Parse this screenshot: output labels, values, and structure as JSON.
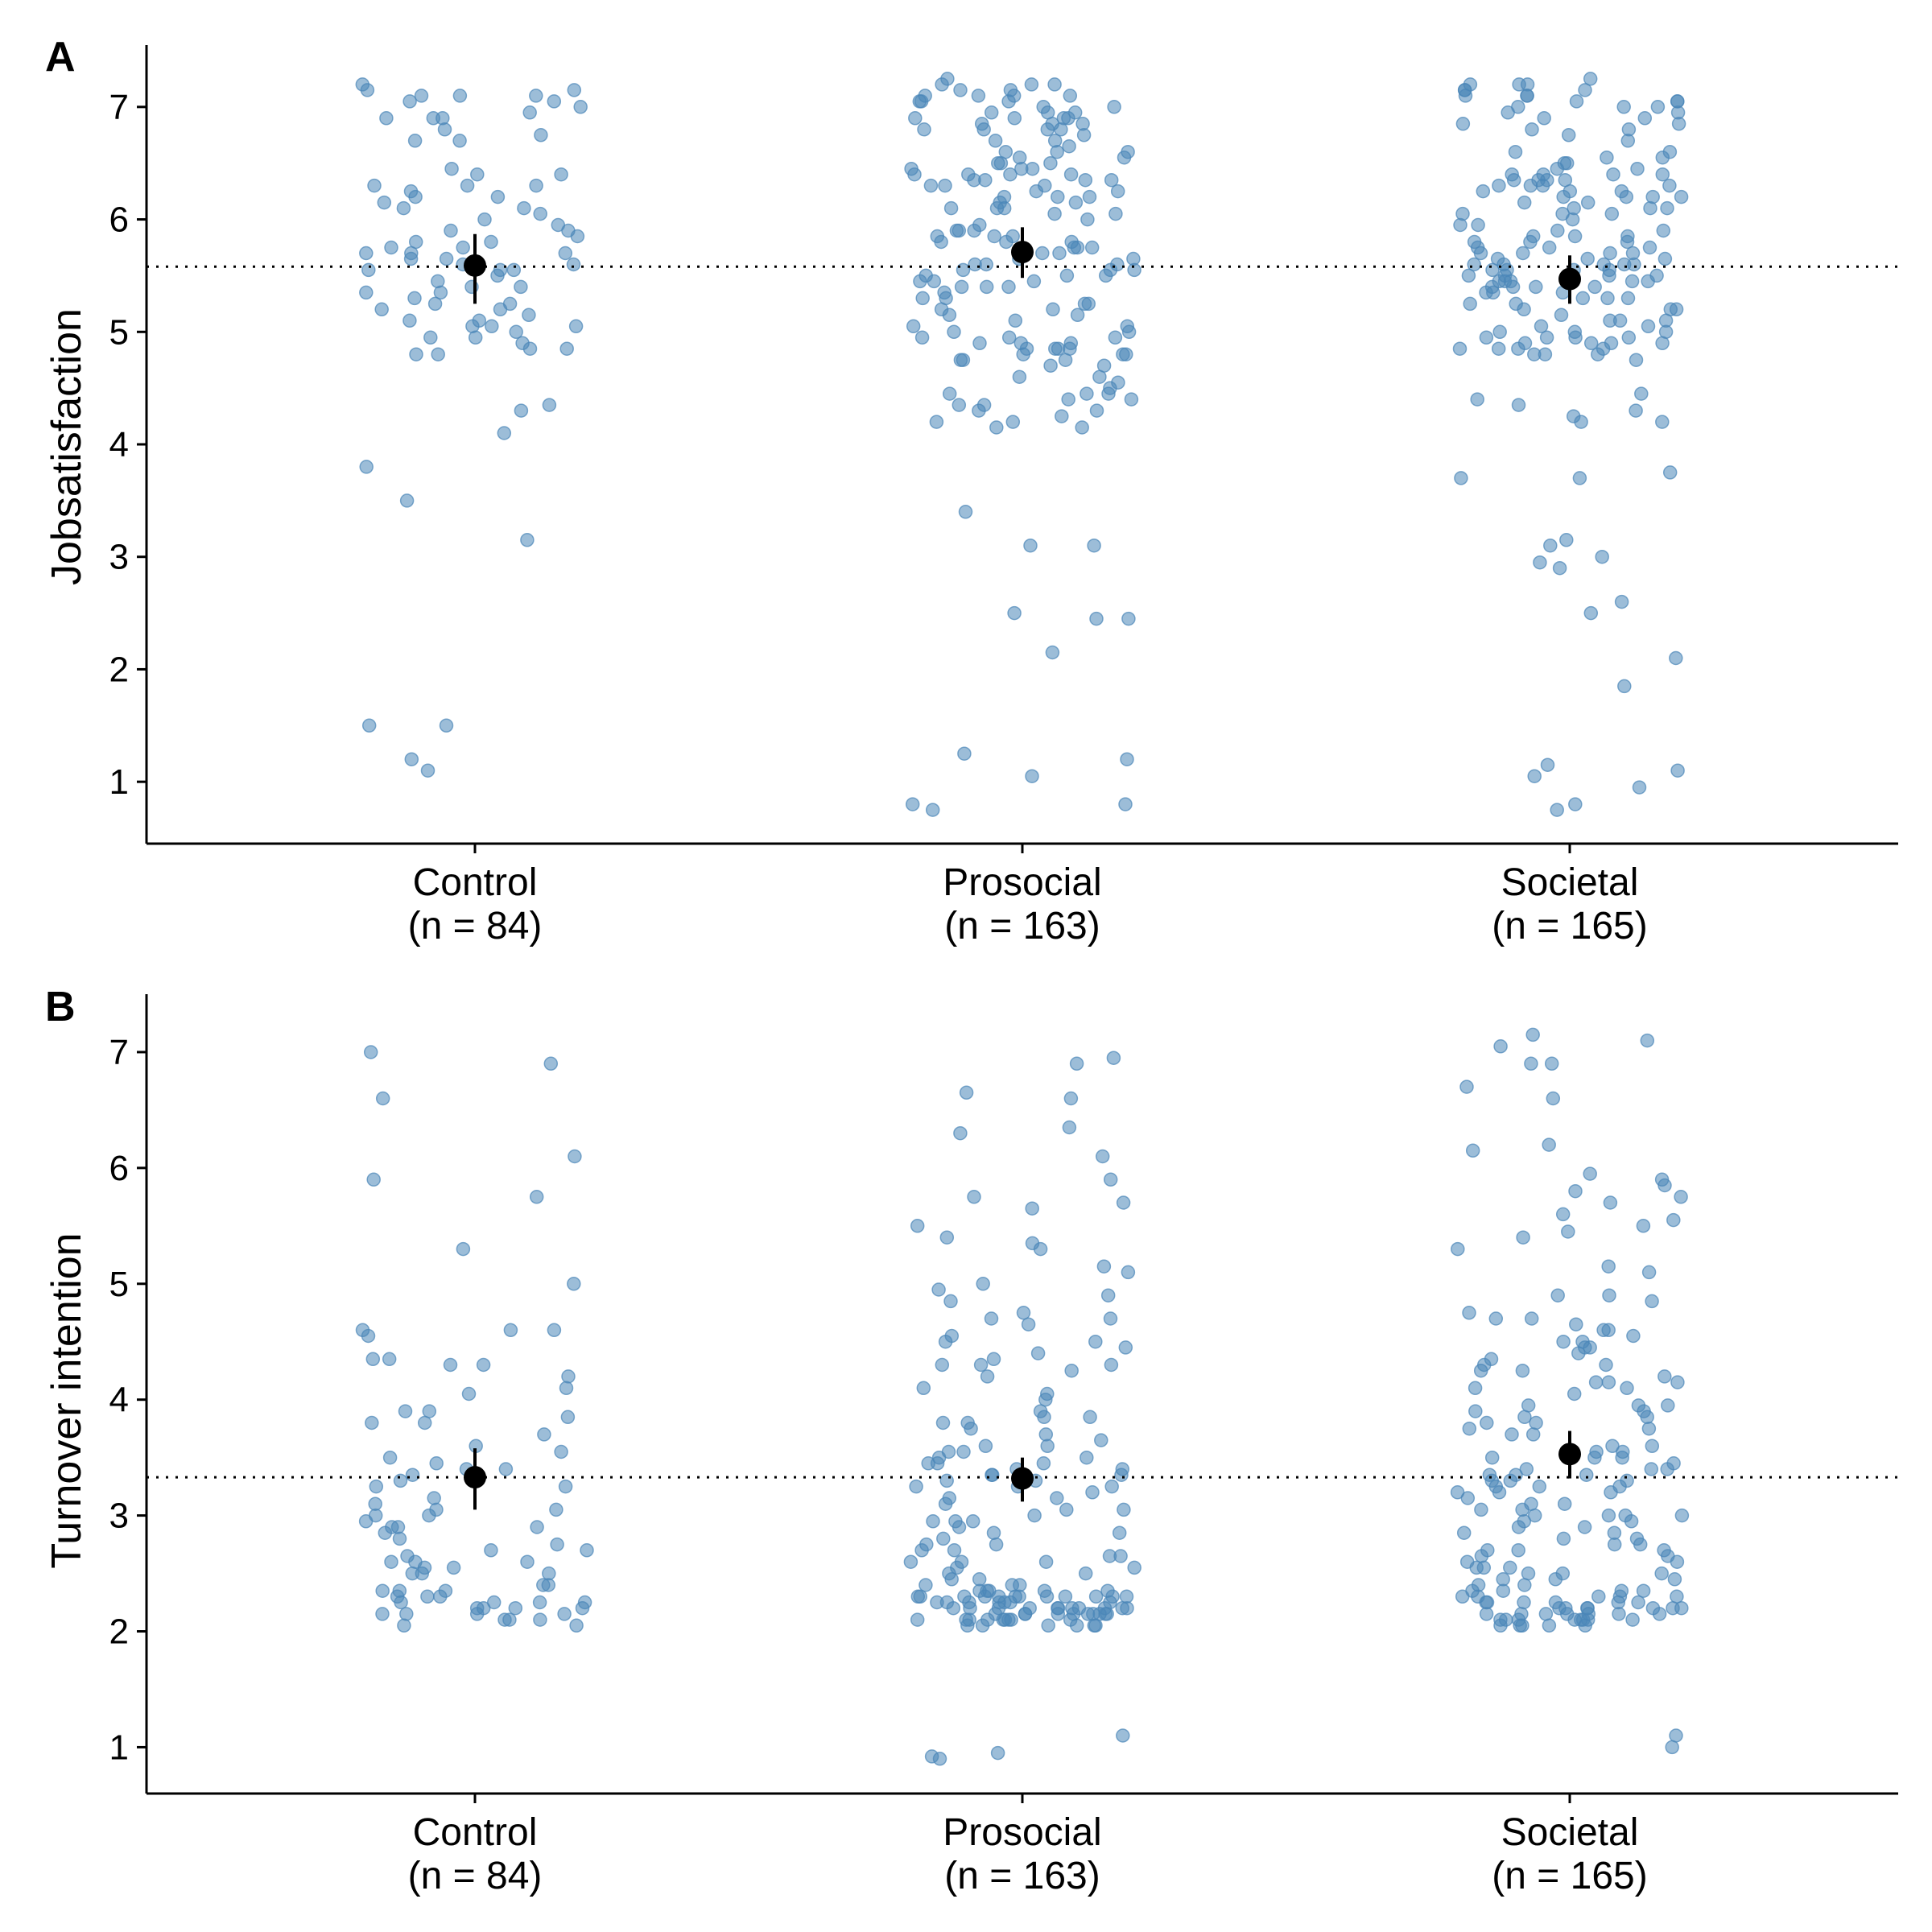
{
  "colors": {
    "point": "#4a86b8",
    "summary": "#000000",
    "axis": "#000000",
    "background": "#ffffff"
  },
  "chart_data": [
    {
      "type": "scatter",
      "panel_tag": "A",
      "ylabel": "Jobsatisfaction",
      "xlabel": "",
      "ylim": [
        0.45,
        7.55
      ],
      "yticks": [
        1,
        2,
        3,
        4,
        5,
        6,
        7
      ],
      "grid": false,
      "reference_line": 5.58,
      "categories": [
        {
          "label": "Control",
          "n_label": "(n = 84)"
        },
        {
          "label": "Prosocial",
          "n_label": "(n = 163)"
        },
        {
          "label": "Societal",
          "n_label": "(n = 165)"
        }
      ],
      "summary": [
        {
          "category": "Control",
          "mean": 5.59,
          "ci": [
            5.25,
            5.87
          ]
        },
        {
          "category": "Prosocial",
          "mean": 5.71,
          "ci": [
            5.48,
            5.93
          ]
        },
        {
          "category": "Societal",
          "mean": 5.47,
          "ci": [
            5.25,
            5.68
          ]
        }
      ],
      "series": [
        {
          "category": "Control",
          "values": [
            7.2,
            7.1,
            7.1,
            7.05,
            6.95,
            6.9,
            7.15,
            7.1,
            7.0,
            7.15,
            7.05,
            6.75,
            6.7,
            6.9,
            6.3,
            6.1,
            6.3,
            6.4,
            6.2,
            6.45,
            6.25,
            6.2,
            6.1,
            6.3,
            5.8,
            5.9,
            5.7,
            5.65,
            5.75,
            5.6,
            5.55,
            5.55,
            5.7,
            5.9,
            5.85,
            5.65,
            5.5,
            5.55,
            5.45,
            5.4,
            5.4,
            5.35,
            5.3,
            5.25,
            5.2,
            5.15,
            5.1,
            5.05,
            5.0,
            4.95,
            5.05,
            5.2,
            5.1,
            4.85,
            4.8,
            4.8,
            4.95,
            4.9,
            4.3,
            4.35,
            4.1,
            3.8,
            3.5,
            3.15,
            1.5,
            1.5,
            1.2,
            1.1,
            6.05,
            5.25,
            5.6,
            5.75,
            5.95,
            6.4,
            6.8,
            6.7,
            5.05,
            4.85,
            6.15,
            6.0,
            5.35,
            5.7,
            6.9,
            5.8
          ]
        },
        {
          "category": "Prosocial",
          "values": [
            7.25,
            7.2,
            7.15,
            7.1,
            7.05,
            7.2,
            7.15,
            7.1,
            7.05,
            7.0,
            6.95,
            6.9,
            6.85,
            6.8,
            6.9,
            6.85,
            6.8,
            6.75,
            6.7,
            6.9,
            6.95,
            7.0,
            6.85,
            6.8,
            6.6,
            6.55,
            6.5,
            6.45,
            6.4,
            6.35,
            6.3,
            6.6,
            6.5,
            6.4,
            6.35,
            6.45,
            6.4,
            6.35,
            6.2,
            6.15,
            6.1,
            6.05,
            6.2,
            6.15,
            6.1,
            6.25,
            6.3,
            5.9,
            5.85,
            5.8,
            5.75,
            5.7,
            5.9,
            5.85,
            5.8,
            5.75,
            5.7,
            5.65,
            5.6,
            5.55,
            5.5,
            5.45,
            5.4,
            5.45,
            5.5,
            5.55,
            5.6,
            5.45,
            5.4,
            5.3,
            5.25,
            5.2,
            5.15,
            5.1,
            5.05,
            5.0,
            4.95,
            4.9,
            4.85,
            4.8,
            4.75,
            4.9,
            4.95,
            4.85,
            4.8,
            4.75,
            4.7,
            4.5,
            4.45,
            4.4,
            4.35,
            4.3,
            4.25,
            4.2,
            4.15,
            4.45,
            4.4,
            4.3,
            4.2,
            4.15,
            3.4,
            3.1,
            3.1,
            2.5,
            2.45,
            2.45,
            2.15,
            1.25,
            1.2,
            1.05,
            0.8,
            0.8,
            0.75,
            7.1,
            7.05,
            6.95,
            6.7,
            6.65,
            6.55,
            6.5,
            6.4,
            6.3,
            6.25,
            6.2,
            6.05,
            6.0,
            5.9,
            5.8,
            5.75,
            5.6,
            5.5,
            5.35,
            5.3,
            5.25,
            5.15,
            5.05,
            4.95,
            4.9,
            4.85,
            4.8,
            4.75,
            4.6,
            4.55,
            4.45,
            4.35,
            7.2,
            7.1,
            6.9,
            6.8,
            6.6,
            6.45,
            6.35,
            6.1,
            5.95,
            5.85,
            5.65,
            5.55,
            5.4,
            5.2,
            5.0,
            4.85,
            4.7,
            4.6
          ]
        },
        {
          "category": "Societal",
          "values": [
            7.25,
            7.2,
            7.15,
            7.1,
            7.05,
            7.0,
            7.2,
            7.15,
            7.1,
            7.05,
            7.0,
            6.95,
            6.9,
            6.85,
            6.8,
            7.2,
            7.15,
            7.1,
            7.05,
            6.95,
            6.9,
            6.85,
            6.6,
            6.55,
            6.5,
            6.45,
            6.4,
            6.35,
            6.3,
            6.25,
            6.2,
            6.4,
            6.35,
            6.3,
            6.25,
            6.2,
            6.15,
            6.1,
            6.4,
            6.35,
            6.3,
            6.2,
            6.1,
            6.05,
            5.85,
            5.8,
            5.75,
            5.7,
            5.65,
            5.6,
            5.55,
            5.5,
            5.45,
            5.4,
            5.85,
            5.8,
            5.75,
            5.7,
            5.65,
            5.6,
            5.55,
            5.5,
            5.45,
            5.4,
            5.35,
            5.6,
            5.55,
            5.5,
            5.45,
            5.4,
            5.3,
            5.25,
            5.2,
            5.15,
            5.1,
            5.05,
            5.0,
            4.95,
            4.9,
            4.85,
            4.8,
            4.75,
            5.0,
            4.95,
            4.9,
            4.85,
            4.8,
            4.95,
            4.9,
            4.85,
            4.45,
            4.4,
            4.35,
            4.3,
            4.25,
            4.2,
            4.2,
            3.75,
            3.7,
            3.7,
            3.15,
            3.1,
            3.0,
            2.95,
            2.9,
            2.6,
            2.5,
            2.1,
            1.85,
            1.15,
            1.1,
            1.05,
            0.95,
            0.8,
            0.75,
            7.0,
            6.8,
            6.7,
            6.6,
            6.5,
            6.45,
            6.3,
            6.2,
            6.1,
            6.0,
            5.95,
            5.9,
            5.8,
            5.7,
            5.6,
            5.5,
            5.45,
            5.35,
            5.25,
            5.2,
            5.1,
            5.0,
            4.9,
            4.8,
            6.15,
            6.05,
            5.95,
            5.7,
            5.5,
            5.3,
            5.1,
            4.95,
            6.55,
            6.4,
            6.25,
            6.05,
            5.9,
            5.75,
            5.6,
            5.45,
            5.35,
            5.2,
            5.05,
            4.85,
            6.75,
            6.35,
            5.85,
            5.65,
            5.55,
            5.4,
            5.3
          ]
        }
      ]
    },
    {
      "type": "scatter",
      "panel_tag": "B",
      "ylabel": "Turnover intention",
      "xlabel": "",
      "ylim": [
        0.6,
        7.5
      ],
      "yticks": [
        1,
        2,
        3,
        4,
        5,
        6,
        7
      ],
      "grid": false,
      "reference_line": 3.33,
      "categories": [
        {
          "label": "Control",
          "n_label": "(n = 84)"
        },
        {
          "label": "Prosocial",
          "n_label": "(n = 163)"
        },
        {
          "label": "Societal",
          "n_label": "(n = 165)"
        }
      ],
      "summary": [
        {
          "category": "Control",
          "mean": 3.33,
          "ci": [
            3.05,
            3.58
          ]
        },
        {
          "category": "Prosocial",
          "mean": 3.32,
          "ci": [
            3.12,
            3.5
          ]
        },
        {
          "category": "Societal",
          "mean": 3.53,
          "ci": [
            3.32,
            3.73
          ]
        }
      ],
      "series": [
        {
          "category": "Control",
          "values": [
            7.0,
            6.9,
            6.6,
            6.1,
            5.9,
            5.75,
            5.3,
            5.0,
            4.6,
            4.6,
            4.55,
            4.6,
            4.35,
            4.35,
            4.3,
            4.3,
            4.1,
            4.05,
            3.9,
            3.85,
            3.8,
            3.8,
            3.9,
            3.55,
            3.5,
            3.45,
            3.4,
            3.4,
            3.3,
            3.25,
            3.25,
            3.1,
            3.05,
            3.05,
            3.0,
            2.95,
            2.9,
            2.9,
            2.85,
            2.8,
            2.75,
            2.7,
            2.65,
            2.6,
            2.6,
            2.55,
            2.55,
            2.5,
            2.5,
            2.5,
            2.4,
            2.35,
            2.35,
            2.3,
            2.3,
            2.25,
            2.25,
            2.25,
            2.2,
            2.2,
            2.2,
            2.15,
            2.15,
            2.15,
            2.1,
            2.1,
            2.05,
            2.05,
            2.25,
            2.2,
            2.15,
            2.3,
            2.35,
            2.6,
            2.7,
            2.9,
            3.0,
            3.15,
            3.6,
            3.7,
            4.2,
            3.35,
            2.4,
            2.1
          ]
        },
        {
          "category": "Prosocial",
          "values": [
            6.95,
            6.9,
            6.65,
            6.6,
            6.35,
            6.3,
            6.1,
            5.9,
            5.75,
            5.7,
            5.65,
            5.5,
            5.4,
            5.35,
            5.3,
            5.15,
            5.1,
            5.0,
            4.95,
            4.9,
            4.85,
            4.75,
            4.7,
            4.65,
            4.55,
            4.5,
            4.5,
            4.45,
            4.35,
            4.3,
            4.3,
            4.3,
            4.25,
            4.2,
            4.1,
            4.05,
            3.85,
            3.85,
            3.8,
            3.8,
            3.75,
            3.7,
            3.65,
            3.6,
            3.55,
            3.5,
            3.5,
            3.45,
            3.45,
            3.4,
            3.4,
            3.35,
            3.3,
            3.3,
            3.25,
            3.2,
            3.15,
            3.1,
            3.05,
            3.0,
            2.95,
            2.95,
            2.9,
            2.85,
            2.8,
            2.75,
            2.7,
            2.65,
            2.6,
            2.6,
            2.55,
            2.5,
            2.45,
            2.4,
            2.35,
            2.35,
            2.35,
            2.3,
            2.3,
            2.3,
            2.3,
            2.3,
            2.3,
            2.3,
            2.3,
            2.3,
            2.25,
            2.25,
            2.25,
            2.25,
            2.2,
            2.2,
            2.2,
            2.2,
            2.2,
            2.2,
            2.2,
            2.2,
            2.15,
            2.15,
            2.15,
            2.15,
            2.15,
            2.15,
            2.15,
            2.1,
            2.1,
            2.1,
            2.1,
            2.1,
            2.1,
            2.05,
            2.05,
            2.05,
            2.05,
            2.05,
            1.1,
            0.95,
            0.92,
            0.9,
            4.7,
            4.4,
            4.0,
            3.9,
            3.6,
            3.55,
            3.35,
            3.25,
            3.05,
            2.95,
            2.75,
            2.65,
            2.55,
            2.45,
            2.4,
            2.35,
            2.3,
            2.25,
            2.2,
            2.15,
            2.1,
            2.05,
            2.3,
            2.25,
            2.2,
            2.15,
            2.1,
            3.45,
            3.35,
            3.25,
            3.15,
            2.85,
            2.7,
            2.6,
            2.5,
            2.4,
            2.35,
            2.3,
            2.25,
            2.2,
            2.15,
            2.1
          ]
        },
        {
          "category": "Societal",
          "values": [
            7.15,
            7.1,
            7.05,
            6.9,
            6.9,
            6.7,
            6.6,
            6.2,
            6.15,
            5.95,
            5.9,
            5.85,
            5.8,
            5.75,
            5.7,
            5.6,
            5.55,
            5.5,
            5.45,
            5.4,
            5.3,
            5.15,
            4.9,
            4.85,
            4.75,
            4.7,
            4.65,
            4.6,
            4.55,
            4.5,
            4.5,
            4.45,
            4.35,
            4.3,
            4.25,
            4.2,
            4.15,
            4.15,
            4.1,
            4.05,
            3.95,
            3.9,
            3.9,
            3.85,
            3.8,
            3.75,
            3.7,
            3.6,
            3.55,
            3.5,
            3.45,
            3.4,
            3.4,
            3.4,
            3.35,
            3.35,
            3.3,
            3.3,
            3.25,
            3.25,
            3.2,
            3.15,
            3.1,
            3.05,
            3.0,
            3.0,
            3.0,
            2.95,
            2.9,
            2.85,
            2.8,
            2.75,
            2.7,
            2.7,
            2.65,
            2.6,
            2.55,
            2.5,
            2.5,
            2.45,
            2.4,
            2.35,
            2.3,
            2.3,
            2.3,
            2.25,
            2.25,
            2.25,
            2.2,
            2.2,
            2.2,
            2.2,
            2.15,
            2.15,
            2.15,
            2.15,
            2.1,
            2.1,
            2.1,
            2.1,
            2.05,
            2.05,
            2.05,
            1.1,
            1.0,
            4.6,
            4.4,
            4.3,
            4.1,
            3.95,
            3.85,
            3.7,
            3.55,
            3.3,
            3.2,
            3.1,
            2.95,
            2.8,
            2.65,
            2.55,
            2.45,
            2.35,
            2.25,
            2.15,
            2.1,
            4.7,
            4.45,
            4.15,
            3.95,
            3.6,
            3.35,
            3.05,
            2.85,
            2.6,
            2.4,
            2.3,
            2.2,
            2.15,
            2.1,
            3.75,
            3.5,
            3.25,
            3.0,
            2.75,
            2.5,
            2.35,
            2.25,
            2.2,
            2.15,
            2.1,
            2.05,
            5.1,
            4.9,
            4.25,
            3.8,
            3.5,
            3.2,
            2.9,
            2.7,
            2.55,
            2.45,
            2.35,
            2.3,
            2.25,
            2.2,
            2.1,
            2.05
          ]
        }
      ]
    }
  ]
}
